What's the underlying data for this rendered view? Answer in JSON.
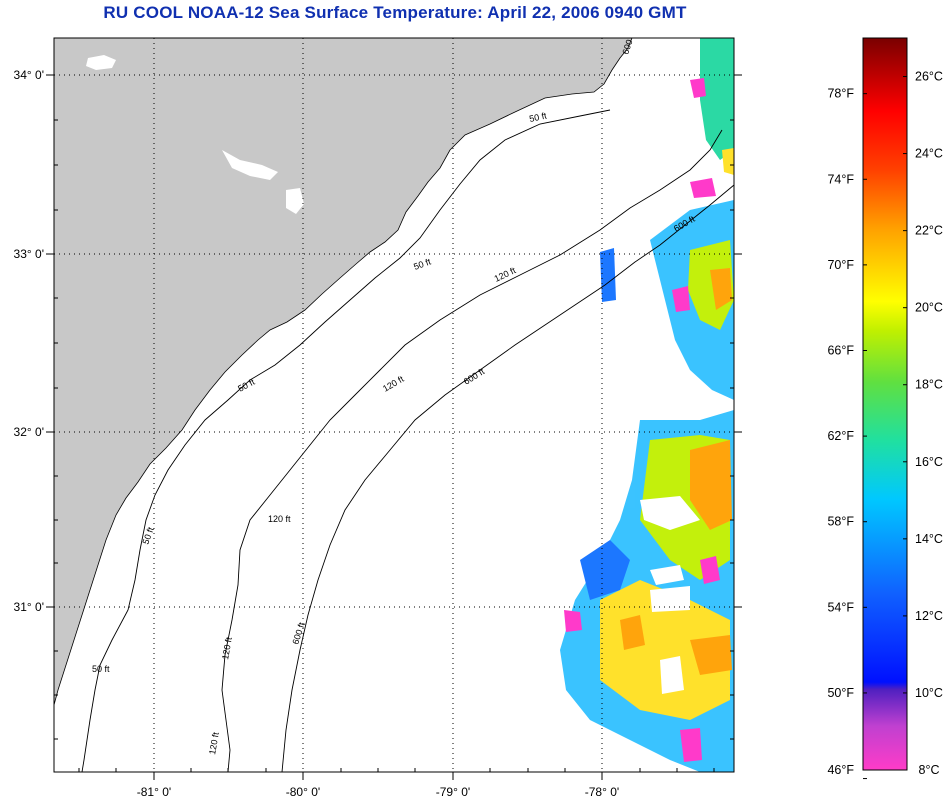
{
  "title": "RU COOL  NOAA-12  Sea Surface Temperature:  April 22, 2006 0940 GMT",
  "map": {
    "lat_labels": [
      "34° 0'",
      "33° 0'",
      "32° 0'",
      "31° 0'"
    ],
    "lon_labels": [
      "-81° 0'",
      "-80° 0'",
      "-79° 0'",
      "-78° 0'"
    ],
    "contour_labels": [
      "50 ft",
      "120 ft",
      "600 ft"
    ],
    "colors": {
      "land": "#c8c8c8",
      "ocean": "#ffffff",
      "grid": "#000000"
    }
  },
  "colorbar": {
    "fahrenheit_labels": [
      "78°F",
      "74°F",
      "70°F",
      "66°F",
      "62°F",
      "58°F",
      "54°F",
      "50°F",
      "46°F"
    ],
    "celsius_labels": [
      "26°C",
      "24°C",
      "22°C",
      "20°C",
      "18°C",
      "16°C",
      "14°C",
      "12°C",
      "10°C",
      "8°C"
    ],
    "min_c": 8,
    "max_c": 27
  }
}
